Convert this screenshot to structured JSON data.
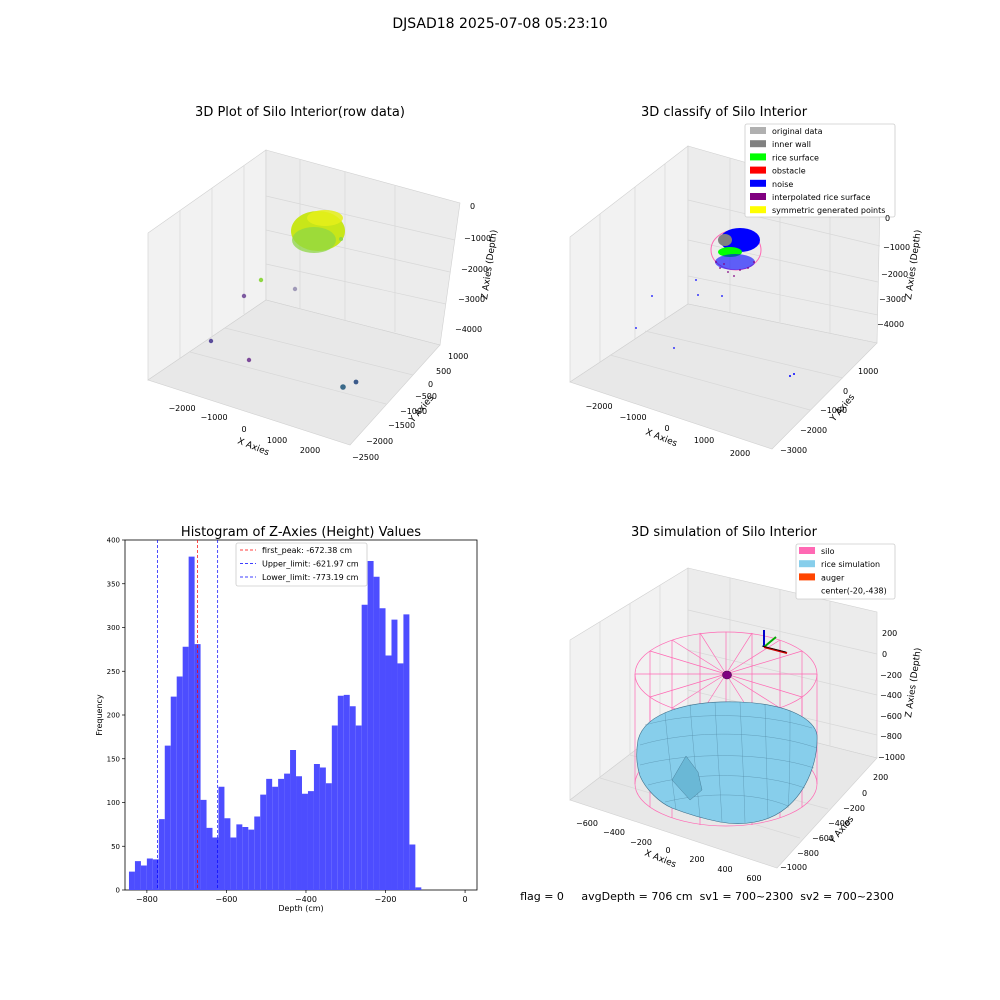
{
  "suptitle": "DJSAD18 2025-07-08 05:23:10",
  "status_line": "flag = 0     avgDepth = 706 cm  sv1 = 700~2300  sv2 = 700~2300",
  "chart_data": [
    {
      "type": "scatter3d",
      "title": "3D Plot of Silo Interior(row data)",
      "xlabel": "X Axies",
      "ylabel": "Y Axies",
      "zlabel": "Z Axies (Depth)",
      "x_ticks": [
        "−2000",
        "−1000",
        "0",
        "1000",
        "2000"
      ],
      "y_ticks": [
        "1000",
        "500",
        "0",
        "−500",
        "−1000",
        "−1500",
        "−2000",
        "−2500"
      ],
      "z_ticks": [
        "0",
        "−1000",
        "−2000",
        "−3000",
        "−4000"
      ],
      "description_colors": [
        "#c8e619",
        "#8fd744",
        "#7d5aa0",
        "#3a6a8a"
      ]
    },
    {
      "type": "scatter3d",
      "title": "3D classify of Silo Interior",
      "xlabel": "X Axies",
      "ylabel": "Y Axies",
      "zlabel": "Z Axies (Depth)",
      "x_ticks": [
        "−2000",
        "−1000",
        "0",
        "1000",
        "2000"
      ],
      "y_ticks": [
        "1000",
        "0",
        "−1000",
        "−2000",
        "−3000"
      ],
      "z_ticks": [
        "0",
        "−1000",
        "−2000",
        "−3000",
        "−4000"
      ],
      "legend_position": "top-right",
      "legend": [
        {
          "label": "original data",
          "color": "#b0b0b0"
        },
        {
          "label": "inner wall",
          "color": "#808080"
        },
        {
          "label": "rice surface",
          "color": "#00ff00"
        },
        {
          "label": "obstacle",
          "color": "#ff0000"
        },
        {
          "label": "noise",
          "color": "#0000ff"
        },
        {
          "label": "interpolated rice surface",
          "color": "#800080"
        },
        {
          "label": "symmetric generated points",
          "color": "#ffff00"
        }
      ]
    },
    {
      "type": "bar",
      "title": "Histogram of Z-Axies (Height) Values",
      "xlabel": "Depth (cm)",
      "ylabel": "Frequency",
      "xlim": [
        -855,
        30
      ],
      "ylim": [
        0,
        400
      ],
      "x_ticks": [
        -800,
        -600,
        -400,
        -200,
        0
      ],
      "y_ticks": [
        0,
        50,
        100,
        150,
        200,
        250,
        300,
        350,
        400
      ],
      "bar_color": "#4d4dff",
      "bin_start": -845,
      "bin_width": 15,
      "values": [
        21,
        33,
        28,
        36,
        35,
        81,
        165,
        221,
        244,
        278,
        381,
        281,
        103,
        71,
        60,
        118,
        82,
        60,
        75,
        72,
        69,
        84,
        109,
        127,
        118,
        127,
        133,
        160,
        130,
        110,
        113,
        144,
        140,
        122,
        188,
        222,
        223,
        210,
        188,
        326,
        376,
        358,
        322,
        268,
        309,
        259,
        315,
        52,
        3
      ],
      "vlines": [
        {
          "value": -672.38,
          "label": "first_peak: -672.38 cm",
          "color": "#ff0000"
        },
        {
          "value": -621.97,
          "label": "Upper_limit: -621.97 cm",
          "color": "#0000ff"
        },
        {
          "value": -773.19,
          "label": "Lower_limit: -773.19 cm",
          "color": "#0000ff"
        }
      ],
      "legend_position": "top-center"
    },
    {
      "type": "surface3d",
      "title": "3D simulation of Silo Interior",
      "xlabel": "X Axies",
      "ylabel": "Y Axies",
      "zlabel": "Z Axies (Depth)",
      "x_ticks": [
        "−600",
        "−400",
        "−200",
        "0",
        "200",
        "400",
        "600"
      ],
      "y_ticks": [
        "200",
        "0",
        "−200",
        "−400",
        "−600",
        "−800",
        "−1000"
      ],
      "z_ticks": [
        "200",
        "0",
        "−200",
        "−400",
        "−600",
        "−800",
        "−1000"
      ],
      "legend_position": "top-right",
      "legend": [
        {
          "label": "silo",
          "color": "#ff69b4"
        },
        {
          "label": "rice simulation",
          "color": "#87ceeb"
        },
        {
          "label": "auger",
          "color": "#ff4500"
        },
        {
          "label": "center(-20,-438)",
          "color": null
        }
      ]
    }
  ]
}
